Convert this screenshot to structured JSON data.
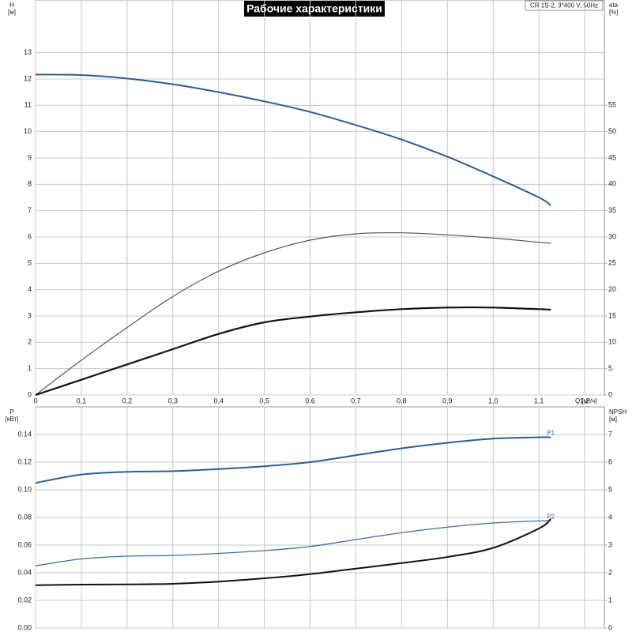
{
  "chart_data": [
    {
      "type": "line",
      "title": "Рабочие характеристики",
      "subtitle": "CR 1S-2, 3*400 V, 50Hz",
      "y_label": "H",
      "y_unit": "[м]",
      "y2_label": "eta",
      "y2_unit": "[%]",
      "x_label": "Q [м³/ч]",
      "x": [
        0,
        0.1,
        0.2,
        0.3,
        0.4,
        0.5,
        0.6,
        0.7,
        0.8,
        0.9,
        1.0,
        1.1,
        1.126
      ],
      "xlim": [
        0,
        1.243
      ],
      "xticks": [
        0,
        {
          "value": 0.1,
          "label": "0,1"
        },
        {
          "value": 0.2,
          "label": "0,2"
        },
        {
          "value": 0.3,
          "label": "0,3"
        },
        {
          "value": 0.4,
          "label": "0,4"
        },
        {
          "value": 0.5,
          "label": "0,5"
        },
        {
          "value": 0.6,
          "label": "0,6"
        },
        {
          "value": 0.7,
          "label": "0,7"
        },
        {
          "value": 0.8,
          "label": "0,8"
        },
        {
          "value": 0.9,
          "label": "0,9"
        },
        {
          "value": 1.0,
          "label": "1,0"
        },
        {
          "value": 1.1,
          "label": "1,1"
        },
        {
          "value": 1.2,
          "label": "1,2"
        }
      ],
      "ylim": [
        0,
        15
      ],
      "yticks": [
        0,
        1,
        2,
        3,
        4,
        5,
        6,
        7,
        8,
        9,
        10,
        11,
        12,
        13
      ],
      "y2lim": [
        0,
        75
      ],
      "y2ticks": [
        0,
        5,
        10,
        15,
        20,
        25,
        30,
        35,
        40,
        45,
        50,
        55
      ],
      "grid": true,
      "series": [
        {
          "color": "#2b5f8f",
          "width": 2,
          "values": [
            12.17,
            12.15,
            12.02,
            11.8,
            11.5,
            11.15,
            10.75,
            10.25,
            9.7,
            9.05,
            8.3,
            7.5,
            7.2
          ]
        },
        {
          "color": "#555555",
          "width": 1.2,
          "axis": "y2",
          "values": [
            0,
            6.6,
            12.8,
            18.7,
            23.5,
            27,
            29.4,
            30.6,
            30.8,
            30.4,
            29.8,
            29.0,
            28.8
          ]
        },
        {
          "color": "#111111",
          "width": 2.2,
          "axis": "y2",
          "values": [
            0,
            2.9,
            5.8,
            8.7,
            11.6,
            13.8,
            14.9,
            15.7,
            16.3,
            16.6,
            16.6,
            16.3,
            16.2
          ]
        }
      ]
    },
    {
      "type": "line",
      "y_label": "P",
      "y_unit": "[кВт]",
      "y2_label": "NPSH",
      "y2_unit": "[м]",
      "x": [
        0,
        0.1,
        0.2,
        0.3,
        0.4,
        0.5,
        0.6,
        0.7,
        0.8,
        0.9,
        1.0,
        1.1,
        1.126
      ],
      "xlim": [
        0,
        1.243
      ],
      "xticks": [
        0,
        0.1,
        0.2,
        0.3,
        0.4,
        0.5,
        0.6,
        0.7,
        0.8,
        0.9,
        1.0,
        1.1,
        1.2
      ],
      "ylim": [
        0,
        0.16
      ],
      "yticks": [
        {
          "value": 0,
          "label": "0.00"
        },
        0.02,
        0.04,
        0.06,
        0.08,
        {
          "value": 0.1,
          "label": "0.10"
        },
        0.12,
        0.14
      ],
      "y2lim": [
        0,
        8
      ],
      "y2ticks": [
        0,
        1,
        2,
        3,
        4,
        5,
        6,
        7
      ],
      "grid": true,
      "series": [
        {
          "name": "P1",
          "color": "#2b5f8f",
          "width": 2,
          "values": [
            0.105,
            0.111,
            0.113,
            0.1135,
            0.115,
            0.117,
            0.12,
            0.125,
            0.13,
            0.134,
            0.137,
            0.138,
            0.138
          ]
        },
        {
          "name": "P2",
          "color": "#3f6f9f",
          "width": 1.3,
          "values": [
            0.045,
            0.05,
            0.052,
            0.0525,
            0.054,
            0.056,
            0.059,
            0.064,
            0.069,
            0.073,
            0.076,
            0.0775,
            0.0775
          ]
        },
        {
          "color": "#111111",
          "width": 2,
          "axis": "y2",
          "values": [
            1.55,
            1.57,
            1.58,
            1.6,
            1.68,
            1.8,
            1.95,
            2.15,
            2.35,
            2.57,
            2.9,
            3.6,
            3.95
          ]
        }
      ]
    }
  ]
}
